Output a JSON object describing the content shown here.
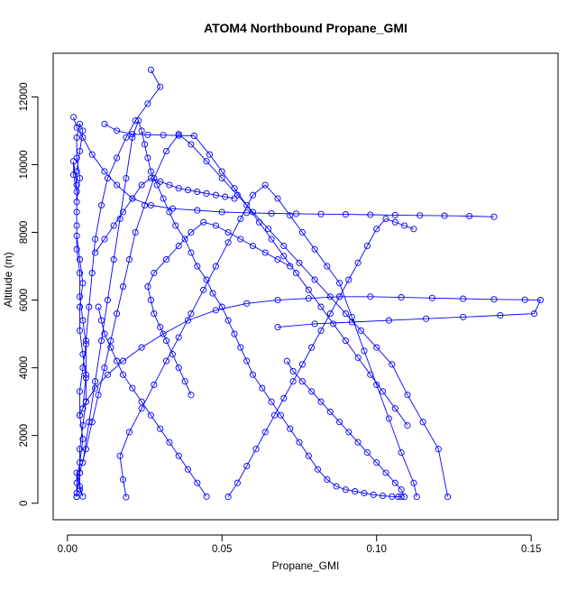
{
  "chart_data": {
    "type": "line",
    "title": "ATOM4 Northbound Propane_GMI",
    "xlabel": "Propane_GMI",
    "ylabel": "Altitude (m)",
    "xlim": [
      -0.0046,
      0.1587
    ],
    "ylim": [
      -486,
      13290
    ],
    "xticks": [
      0.0,
      0.05,
      0.1,
      0.15
    ],
    "xtick_labels": [
      "0.00",
      "0.05",
      "0.10",
      "0.15"
    ],
    "yticks": [
      0,
      2000,
      4000,
      6000,
      8000,
      10000,
      12000
    ],
    "ytick_labels": [
      "0",
      "2000",
      "4000",
      "6000",
      "8000",
      "10000",
      "12000"
    ],
    "grid": false,
    "legend": "none",
    "colors": {
      "series": "#0000ff",
      "axis": "#000000",
      "background": "#ffffff"
    },
    "marker": "open-circle",
    "series": [
      {
        "x": [
          0.003,
          0.003,
          0.004,
          0.005,
          0.004,
          0.004,
          0.005,
          0.006,
          0.005,
          0.004,
          0.004,
          0.003,
          0.003,
          0.003,
          0.004,
          0.003,
          0.003,
          0.004,
          0.005,
          0.004,
          0.003,
          0.003,
          0.002,
          0.002,
          0.003,
          0.003,
          0.003,
          0.004,
          0.005,
          0.004,
          0.004,
          0.005,
          0.006,
          0.006,
          0.005,
          0.004,
          0.004,
          0.004,
          0.005,
          0.004,
          0.003,
          0.003
        ],
        "y": [
          190,
          600,
          1200,
          1900,
          2600,
          3300,
          4000,
          4700,
          5400,
          6100,
          6800,
          7500,
          8200,
          8900,
          9600,
          10200,
          10800,
          11200,
          11000,
          10400,
          9800,
          9200,
          9700,
          10100,
          9400,
          8600,
          7900,
          7200,
          6500,
          5800,
          5100,
          4400,
          3700,
          3000,
          2300,
          1600,
          900,
          400,
          200,
          500,
          900,
          190
        ]
      },
      {
        "x": [
          0.005,
          0.007,
          0.009,
          0.011,
          0.013,
          0.015,
          0.017,
          0.019,
          0.021,
          0.023,
          0.024,
          0.025,
          0.026,
          0.027,
          0.029,
          0.031,
          0.033,
          0.035,
          0.038,
          0.04,
          0.042,
          0.045,
          0.047,
          0.05,
          0.052,
          0.054,
          0.056,
          0.058,
          0.06,
          0.063,
          0.066,
          0.069,
          0.072,
          0.075,
          0.078,
          0.081,
          0.084,
          0.087,
          0.09,
          0.093,
          0.096,
          0.099,
          0.102,
          0.105,
          0.107,
          0.108
        ],
        "y": [
          1200,
          2400,
          3600,
          4800,
          6000,
          7200,
          8400,
          9600,
          10800,
          11300,
          11000,
          10600,
          10200,
          9800,
          9400,
          9000,
          8600,
          8200,
          7800,
          7400,
          7000,
          6600,
          6200,
          5800,
          5400,
          5000,
          4600,
          4200,
          3800,
          3400,
          3000,
          2600,
          2200,
          1800,
          1400,
          1000,
          700,
          500,
          400,
          350,
          300,
          250,
          220,
          200,
          190,
          190
        ]
      },
      {
        "x": [
          0.003,
          0.004,
          0.006,
          0.008,
          0.01,
          0.012,
          0.014,
          0.016,
          0.018,
          0.02,
          0.022,
          0.025,
          0.028,
          0.032,
          0.036,
          0.04,
          0.045,
          0.05,
          0.055,
          0.06,
          0.065,
          0.07,
          0.075,
          0.08,
          0.085,
          0.09,
          0.095,
          0.1,
          0.105,
          0.11,
          0.115,
          0.12,
          0.123
        ],
        "y": [
          300,
          900,
          1600,
          2400,
          3200,
          4000,
          4800,
          5600,
          6400,
          7200,
          8000,
          8800,
          9600,
          10400,
          10900,
          10600,
          10100,
          9600,
          9100,
          8600,
          8100,
          7600,
          7100,
          6600,
          6100,
          5600,
          5100,
          4600,
          4100,
          3200,
          2400,
          1600,
          190
        ]
      },
      {
        "x": [
          0.002,
          0.003,
          0.005,
          0.008,
          0.012,
          0.016,
          0.021,
          0.027,
          0.034,
          0.042,
          0.05,
          0.058,
          0.066,
          0.074,
          0.082,
          0.09,
          0.098,
          0.106,
          0.114,
          0.122,
          0.13,
          0.138
        ],
        "y": [
          11400,
          11100,
          10800,
          10300,
          9800,
          9400,
          9000,
          8800,
          8700,
          8650,
          8600,
          8580,
          8560,
          8550,
          8540,
          8530,
          8520,
          8510,
          8500,
          8490,
          8480,
          8460
        ]
      },
      {
        "x": [
          0.004,
          0.006,
          0.009,
          0.013,
          0.018,
          0.024,
          0.031,
          0.039,
          0.048,
          0.058,
          0.068,
          0.078,
          0.088,
          0.098,
          0.108,
          0.118,
          0.128,
          0.138,
          0.148,
          0.153,
          0.151,
          0.14,
          0.128,
          0.116,
          0.104,
          0.092,
          0.08,
          0.068
        ],
        "y": [
          2600,
          3000,
          3400,
          3800,
          4200,
          4600,
          5000,
          5400,
          5700,
          5900,
          6000,
          6050,
          6100,
          6100,
          6080,
          6060,
          6040,
          6020,
          6010,
          6000,
          5600,
          5550,
          5500,
          5450,
          5400,
          5350,
          5300,
          5200
        ]
      },
      {
        "x": [
          0.019,
          0.018,
          0.017,
          0.02,
          0.024,
          0.028,
          0.032,
          0.036,
          0.04,
          0.044,
          0.048,
          0.052,
          0.056,
          0.06,
          0.064,
          0.068,
          0.072,
          0.076,
          0.08,
          0.084,
          0.088,
          0.092,
          0.096,
          0.1,
          0.104,
          0.108,
          0.112,
          0.113
        ],
        "y": [
          180,
          700,
          1400,
          2100,
          2800,
          3500,
          4200,
          4900,
          5600,
          6300,
          7000,
          7700,
          8400,
          9100,
          9400,
          9000,
          8500,
          8000,
          7500,
          7000,
          6500,
          5500,
          4500,
          3500,
          2500,
          1500,
          600,
          190
        ]
      },
      {
        "x": [
          0.027,
          0.03,
          0.026,
          0.022,
          0.019,
          0.016,
          0.013,
          0.011,
          0.009,
          0.008,
          0.007,
          0.006,
          0.006,
          0.005
        ],
        "y": [
          12800,
          12300,
          11800,
          11300,
          10800,
          10200,
          9600,
          8800,
          7800,
          6800,
          5800,
          4800,
          3800,
          2800
        ]
      },
      {
        "x": [
          0.012,
          0.016,
          0.021,
          0.026,
          0.031,
          0.036,
          0.041,
          0.046,
          0.05,
          0.054,
          0.058,
          0.062,
          0.066,
          0.07,
          0.074,
          0.078,
          0.082,
          0.086,
          0.09,
          0.094,
          0.098,
          0.102,
          0.106,
          0.11
        ],
        "y": [
          11200,
          11000,
          10900,
          10880,
          10870,
          10860,
          10850,
          10300,
          9800,
          9300,
          8800,
          8300,
          7800,
          7300,
          6800,
          6300,
          5800,
          5300,
          4800,
          4300,
          3800,
          3300,
          2800,
          2300
        ]
      },
      {
        "x": [
          0.04,
          0.038,
          0.036,
          0.034,
          0.032,
          0.03,
          0.028,
          0.027,
          0.026,
          0.028,
          0.032,
          0.036,
          0.04,
          0.044,
          0.048,
          0.052,
          0.056,
          0.06,
          0.064,
          0.068,
          0.072
        ],
        "y": [
          3200,
          3600,
          4000,
          4400,
          4800,
          5200,
          5600,
          6000,
          6400,
          6800,
          7200,
          7600,
          8000,
          8300,
          8200,
          8000,
          7800,
          7600,
          7400,
          7200,
          7000
        ]
      },
      {
        "x": [
          0.052,
          0.055,
          0.058,
          0.061,
          0.064,
          0.067,
          0.07,
          0.073,
          0.076,
          0.079,
          0.082,
          0.085,
          0.088,
          0.091,
          0.094,
          0.097,
          0.1,
          0.103,
          0.106,
          0.109,
          0.112
        ],
        "y": [
          190,
          600,
          1100,
          1600,
          2100,
          2600,
          3100,
          3600,
          4100,
          4600,
          5100,
          5600,
          6100,
          6600,
          7100,
          7600,
          8100,
          8400,
          8300,
          8200,
          8100
        ]
      },
      {
        "x": [
          0.045,
          0.042,
          0.039,
          0.036,
          0.033,
          0.03,
          0.027,
          0.024,
          0.021,
          0.018,
          0.016,
          0.014,
          0.012,
          0.011,
          0.01
        ],
        "y": [
          200,
          600,
          1000,
          1400,
          1800,
          2200,
          2600,
          3000,
          3400,
          3800,
          4200,
          4600,
          5000,
          5400,
          5800
        ]
      },
      {
        "x": [
          0.071,
          0.073,
          0.076,
          0.079,
          0.082,
          0.085,
          0.088,
          0.091,
          0.094,
          0.097,
          0.1,
          0.103,
          0.106,
          0.108,
          0.109
        ],
        "y": [
          4200,
          3900,
          3600,
          3300,
          3000,
          2700,
          2400,
          2100,
          1800,
          1500,
          1200,
          900,
          600,
          400,
          190
        ]
      },
      {
        "x": [
          0.009,
          0.012,
          0.015,
          0.018,
          0.021,
          0.024,
          0.027,
          0.03,
          0.033,
          0.036,
          0.039,
          0.042,
          0.045,
          0.048,
          0.051,
          0.054
        ],
        "y": [
          7400,
          7800,
          8200,
          8600,
          9000,
          9400,
          9600,
          9500,
          9400,
          9300,
          9250,
          9200,
          9150,
          9100,
          9050,
          9000
        ]
      }
    ]
  }
}
